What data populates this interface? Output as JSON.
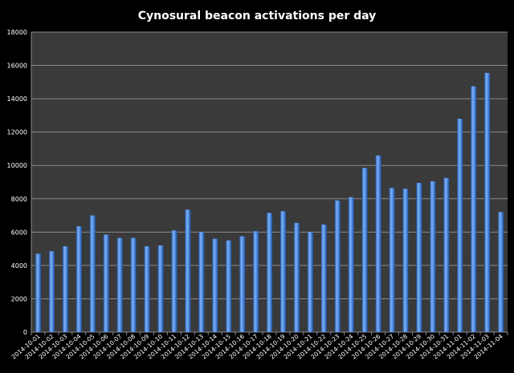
{
  "chart_data": {
    "type": "bar",
    "title": "Cynosural beacon activations per day",
    "xlabel": "",
    "ylabel": "",
    "ylim": [
      0,
      18000
    ],
    "ytick_step": 2000,
    "yticks": [
      "0",
      "2000",
      "4000",
      "6000",
      "8000",
      "10000",
      "12000",
      "14000",
      "16000",
      "18000"
    ],
    "grid": true,
    "legend": "none",
    "categories": [
      "2014-10-01",
      "2014-10-02",
      "2014-10-03",
      "2014-10-04",
      "2014-10-05",
      "2014-10-06",
      "2014-10-07",
      "2014-10-08",
      "2014-10-09",
      "2014-10-10",
      "2014-10-11",
      "2014-10-12",
      "2014-10-13",
      "2014-10-14",
      "2014-10-15",
      "2014-10-16",
      "2014-10-17",
      "2014-10-18",
      "2014-10-19",
      "2014-10-20",
      "2014-10-21",
      "2014-10-22",
      "2014-10-23",
      "2014-10-24",
      "2014-10-25",
      "2014-10-26",
      "2014-10-27",
      "2014-10-28",
      "2014-10-29",
      "2014-10-30",
      "2014-10-31",
      "2014-11-01",
      "2014-11-02",
      "2014-11-03",
      "2014-11-04"
    ],
    "values": [
      4700,
      4850,
      5150,
      6350,
      7000,
      5850,
      5650,
      5650,
      5150,
      5200,
      6100,
      7350,
      6000,
      5600,
      5500,
      5750,
      6050,
      7150,
      7250,
      6550,
      6000,
      6450,
      7900,
      8100,
      9850,
      10600,
      8650,
      8600,
      8950,
      9050,
      9250,
      12800,
      14750,
      15550,
      7200
    ]
  },
  "colors": {
    "background": "#000000",
    "plot_area": "#3a3a3a",
    "gridline": "#8a8a8a",
    "bar_light": "#7fb1f5",
    "bar_mid": "#4a86dc",
    "bar_dark": "#1c4f9c",
    "text": "#ffffff"
  }
}
